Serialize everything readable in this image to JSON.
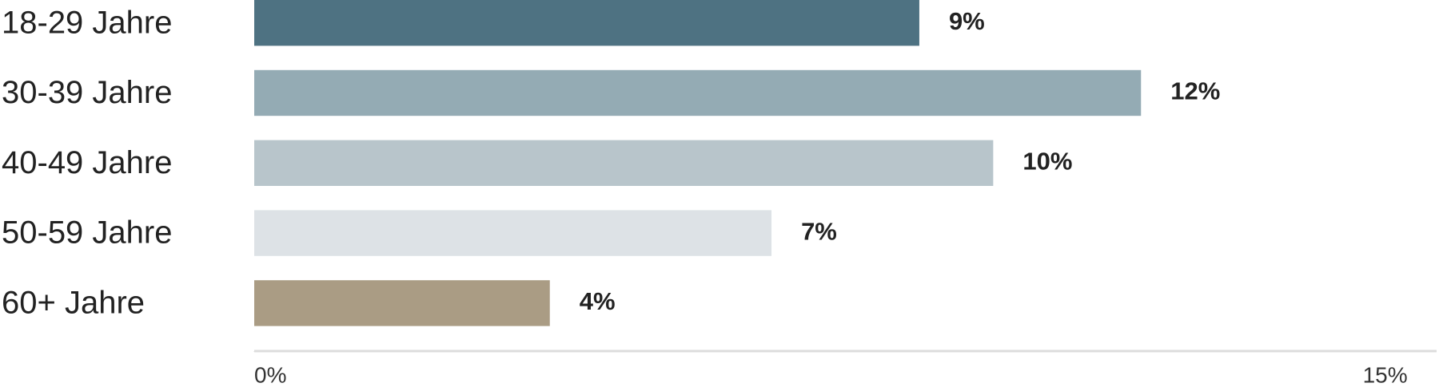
{
  "chart_data": {
    "type": "bar",
    "orientation": "horizontal",
    "categories": [
      "18-29 Jahre",
      "30-39 Jahre",
      "40-49 Jahre",
      "50-59 Jahre",
      "60+ Jahre"
    ],
    "values": [
      9,
      12,
      10,
      7,
      4
    ],
    "value_labels": [
      "9%",
      "12%",
      "10%",
      "7%",
      "4%"
    ],
    "colors": [
      "#4e7282",
      "#94abb4",
      "#b8c5cb",
      "#dde2e6",
      "#aa9c84"
    ],
    "xlim": [
      0,
      16
    ],
    "xticks": [
      {
        "value": 0,
        "label": "0%"
      },
      {
        "value": 15,
        "label": "15%"
      }
    ],
    "grid": false
  }
}
